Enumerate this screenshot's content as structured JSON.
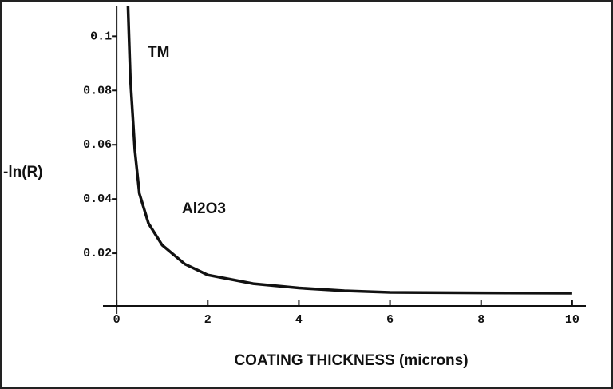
{
  "chart_data": {
    "type": "line",
    "xlabel": "COATING THICKNESS (microns)",
    "ylabel": "-ln(R)",
    "annotations": [
      "TM",
      "Al2O3"
    ],
    "x": [
      0.25,
      0.3,
      0.4,
      0.5,
      0.7,
      1,
      1.5,
      2,
      3,
      4,
      5,
      6,
      8,
      10
    ],
    "series": [
      {
        "color": "#111111",
        "values": [
          0.111,
          0.085,
          0.058,
          0.042,
          0.031,
          0.023,
          0.016,
          0.012,
          0.0088,
          0.0072,
          0.0062,
          0.0056,
          0.0054,
          0.0053
        ]
      }
    ],
    "xlim": [
      -0.3,
      10.3
    ],
    "xticks": [
      0,
      2,
      4,
      6,
      8,
      10
    ],
    "ylim": [
      0,
      0.111
    ],
    "yticks": [
      0.02,
      0.04,
      0.06,
      0.08,
      0.1
    ],
    "grid": false
  }
}
